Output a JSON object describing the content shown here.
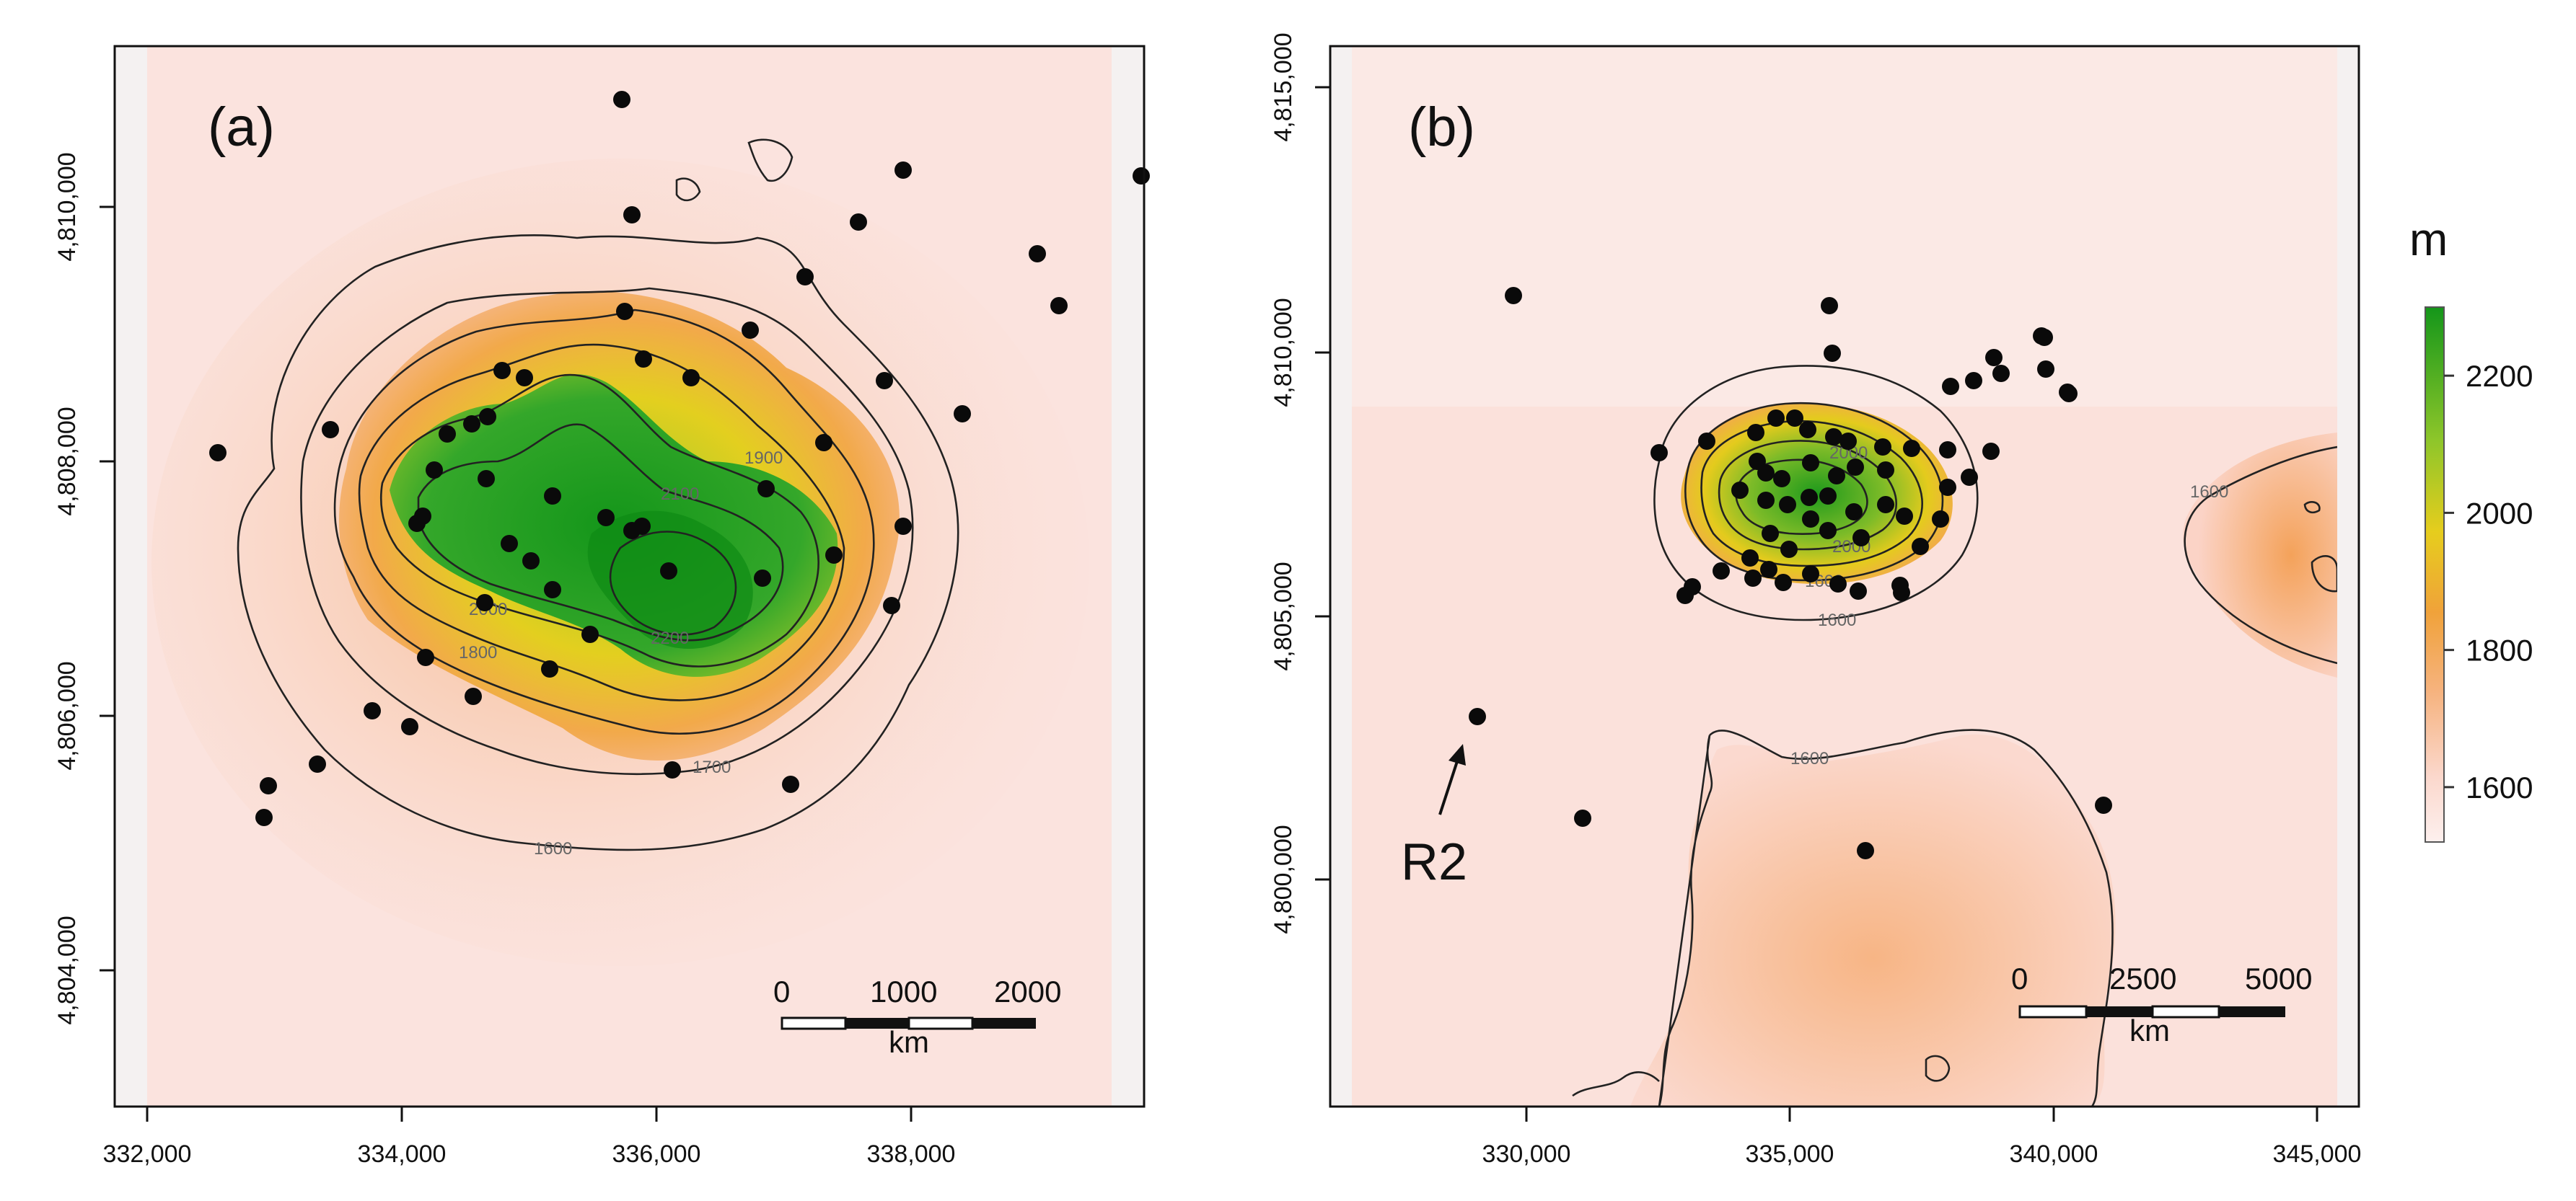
{
  "panels": [
    {
      "id": "a",
      "label": "(a)",
      "x_ticks": [
        "332,000",
        "334,000",
        "336,000",
        "338,000"
      ],
      "y_ticks": [
        "4,804,000",
        "4,806,000",
        "4,808,000",
        "4,810,000"
      ],
      "contour_labels": [
        "1600",
        "1700",
        "1800",
        "1900",
        "2000",
        "2100",
        "2200"
      ],
      "scale_bar": {
        "labels": [
          "0",
          "1000",
          "2000"
        ],
        "unit": "km"
      }
    },
    {
      "id": "b",
      "label": "(b)",
      "x_ticks": [
        "330,000",
        "335,000",
        "340,000",
        "345,000"
      ],
      "y_ticks": [
        "4,800,000",
        "4,805,000",
        "4,810,000",
        "4,815,000"
      ],
      "contour_labels": [
        "1600",
        "1600",
        "1600",
        "1600",
        "2000",
        "2000"
      ],
      "annotation": "R2",
      "scale_bar": {
        "labels": [
          "0",
          "2500",
          "5000"
        ],
        "unit": "km"
      }
    }
  ],
  "legend": {
    "unit": "m",
    "ticks": [
      "2200",
      "2000",
      "1800",
      "1600"
    ],
    "range": [
      1520,
      2300
    ],
    "colors": {
      "high": "#1a9c1a",
      "mid": "#e6cf1c",
      "low_mid": "#f4a25a",
      "low": "#fbe0da"
    }
  }
}
